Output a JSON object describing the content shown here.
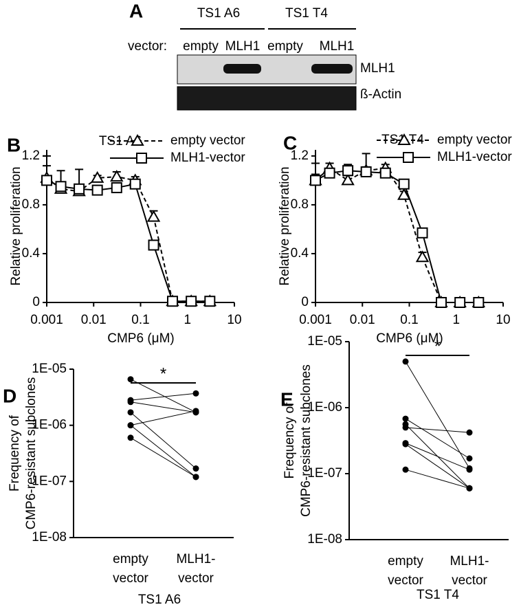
{
  "blot": {
    "label": "A",
    "groups": [
      "TS1 A6",
      "TS1 T4"
    ],
    "vector_label": "vector:",
    "lanes": [
      "empty",
      "MLH1",
      "empty",
      "MLH1"
    ],
    "bands": [
      "MLH1",
      "ß-Actin"
    ]
  },
  "chart_data": [
    {
      "type": "line",
      "label": "B",
      "title": "TS1 A6",
      "xlabel": "CMP6 (μM)",
      "ylabel": "Relative proliferation",
      "xlog": true,
      "x": [
        0.001,
        0.002,
        0.0049,
        0.012,
        0.031,
        0.077,
        0.19,
        0.48,
        1.2,
        3
      ],
      "xlim": [
        0.001,
        10
      ],
      "xticks": [
        0.001,
        0.01,
        0.1,
        1,
        10
      ],
      "ylim": [
        0,
        1.25
      ],
      "yticks": [
        0,
        0.4,
        0.8,
        1.2
      ],
      "series": [
        {
          "name": "empty vector",
          "color": "#000000",
          "marker": "triangle",
          "dashed": true,
          "values": [
            1.02,
            0.93,
            0.91,
            1.02,
            1.03,
            1.0,
            0.7,
            0.01,
            0.01,
            0.01
          ],
          "errors": [
            0.1,
            0.05,
            0.05,
            0.02,
            0.04,
            0.03,
            0.05,
            0,
            0,
            0
          ]
        },
        {
          "name": "MLH1-vector",
          "color": "#000000",
          "marker": "square",
          "dashed": false,
          "values": [
            1.0,
            0.95,
            0.93,
            0.92,
            0.94,
            0.97,
            0.47,
            0.01,
            0.01,
            0.01
          ],
          "errors": [
            0.2,
            0.13,
            0.16,
            0.03,
            0.03,
            0.02,
            0.03,
            0,
            0,
            0
          ]
        }
      ]
    },
    {
      "type": "line",
      "label": "C",
      "title": "TS1 T4",
      "xlabel": "CMP6 (μM)",
      "ylabel": "Relative proliferation",
      "xlog": true,
      "x": [
        0.001,
        0.002,
        0.0049,
        0.012,
        0.031,
        0.077,
        0.19,
        0.48,
        1.2,
        3
      ],
      "xlim": [
        0.001,
        10
      ],
      "xticks": [
        0.001,
        0.01,
        0.1,
        1,
        10
      ],
      "ylim": [
        0,
        1.25
      ],
      "yticks": [
        0,
        0.4,
        0.8,
        1.2
      ],
      "series": [
        {
          "name": "empty vector",
          "color": "#000000",
          "marker": "triangle",
          "dashed": true,
          "values": [
            1.0,
            1.1,
            1.0,
            1.08,
            1.1,
            0.88,
            0.37,
            0.0,
            0.0,
            0.0
          ],
          "errors": [
            0.05,
            0.04,
            0.04,
            0.03,
            0.03,
            0.03,
            0.04,
            0,
            0,
            0
          ]
        },
        {
          "name": "MLH1-vector",
          "color": "#000000",
          "marker": "square",
          "dashed": false,
          "values": [
            1.0,
            1.06,
            1.08,
            1.07,
            1.06,
            0.97,
            0.57,
            0.0,
            0.0,
            0.0
          ],
          "errors": [
            0.14,
            0.08,
            0.05,
            0.15,
            0.04,
            0.03,
            0.03,
            0,
            0,
            0
          ]
        }
      ]
    },
    {
      "type": "paired",
      "label": "D",
      "ylabel": [
        "Frequency of",
        "CMP6-resistant subclones"
      ],
      "xlabel": "TS1 A6",
      "annotation": "*",
      "ylog": true,
      "categories": [
        [
          "empty",
          "vector"
        ],
        [
          "MLH1-",
          "vector"
        ]
      ],
      "ylim": [
        1e-08,
        1e-05
      ],
      "yticks": [
        {
          "value": 1e-08,
          "label": "1E-08"
        },
        {
          "value": 1e-07,
          "label": "1E-07"
        },
        {
          "value": 1e-06,
          "label": "1E-06"
        },
        {
          "value": 1e-05,
          "label": "1E-05"
        }
      ],
      "values": [
        [
          6.6e-06,
          1.7e-06
        ],
        [
          2.8e-06,
          3.7e-06
        ],
        [
          2.6e-06,
          1.7e-06
        ],
        [
          1.7e-06,
          1.7e-07
        ],
        [
          1e-06,
          1.8e-06
        ],
        [
          1e-06,
          1.2e-07
        ],
        [
          6e-07,
          1.2e-07
        ]
      ]
    },
    {
      "type": "paired",
      "label": "E",
      "ylabel": [
        "Frequency of",
        "CMP6-resistant subclones"
      ],
      "xlabel": "TS1 T4",
      "annotation": "*",
      "ylog": true,
      "categories": [
        [
          "empty",
          "vector"
        ],
        [
          "MLH1-",
          "vector"
        ]
      ],
      "ylim": [
        1e-08,
        1e-05
      ],
      "yticks": [
        {
          "value": 1e-08,
          "label": "1E-08"
        },
        {
          "value": 1e-07,
          "label": "1E-07"
        },
        {
          "value": 1e-06,
          "label": "1E-06"
        },
        {
          "value": 1e-05,
          "label": "1E-05"
        }
      ],
      "values": [
        [
          5e-06,
          1.2e-07
        ],
        [
          6.8e-07,
          1.7e-07
        ],
        [
          5.6e-07,
          6e-08
        ],
        [
          5e-07,
          4.2e-07
        ],
        [
          2.9e-07,
          1.15e-07
        ],
        [
          2.8e-07,
          6e-08
        ],
        [
          1.15e-07,
          6e-08
        ]
      ]
    }
  ]
}
